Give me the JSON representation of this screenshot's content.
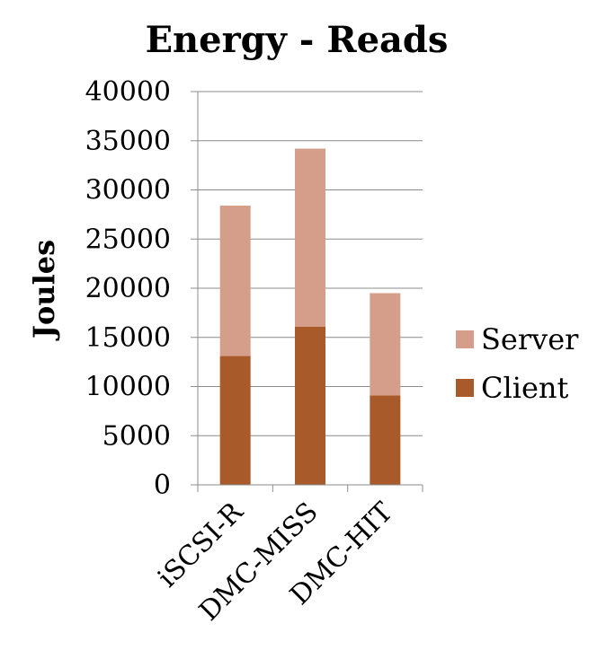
{
  "chart_data": {
    "type": "bar",
    "stacked": true,
    "title": "Energy - Reads",
    "xlabel": "",
    "ylabel": "Joules",
    "categories": [
      "iSCSI-R",
      "DMC-MISS",
      "DMC-HIT"
    ],
    "series": [
      {
        "name": "Client",
        "color": "#a95a2a",
        "values": [
          13100,
          16100,
          9100
        ]
      },
      {
        "name": "Server",
        "color": "#d59e8a",
        "values": [
          15300,
          18100,
          10400
        ]
      }
    ],
    "ylim": [
      0,
      40000
    ],
    "yticks": [
      "0",
      "5000",
      "10000",
      "15000",
      "20000",
      "25000",
      "30000",
      "35000",
      "40000"
    ],
    "grid": true,
    "legend": "right"
  }
}
